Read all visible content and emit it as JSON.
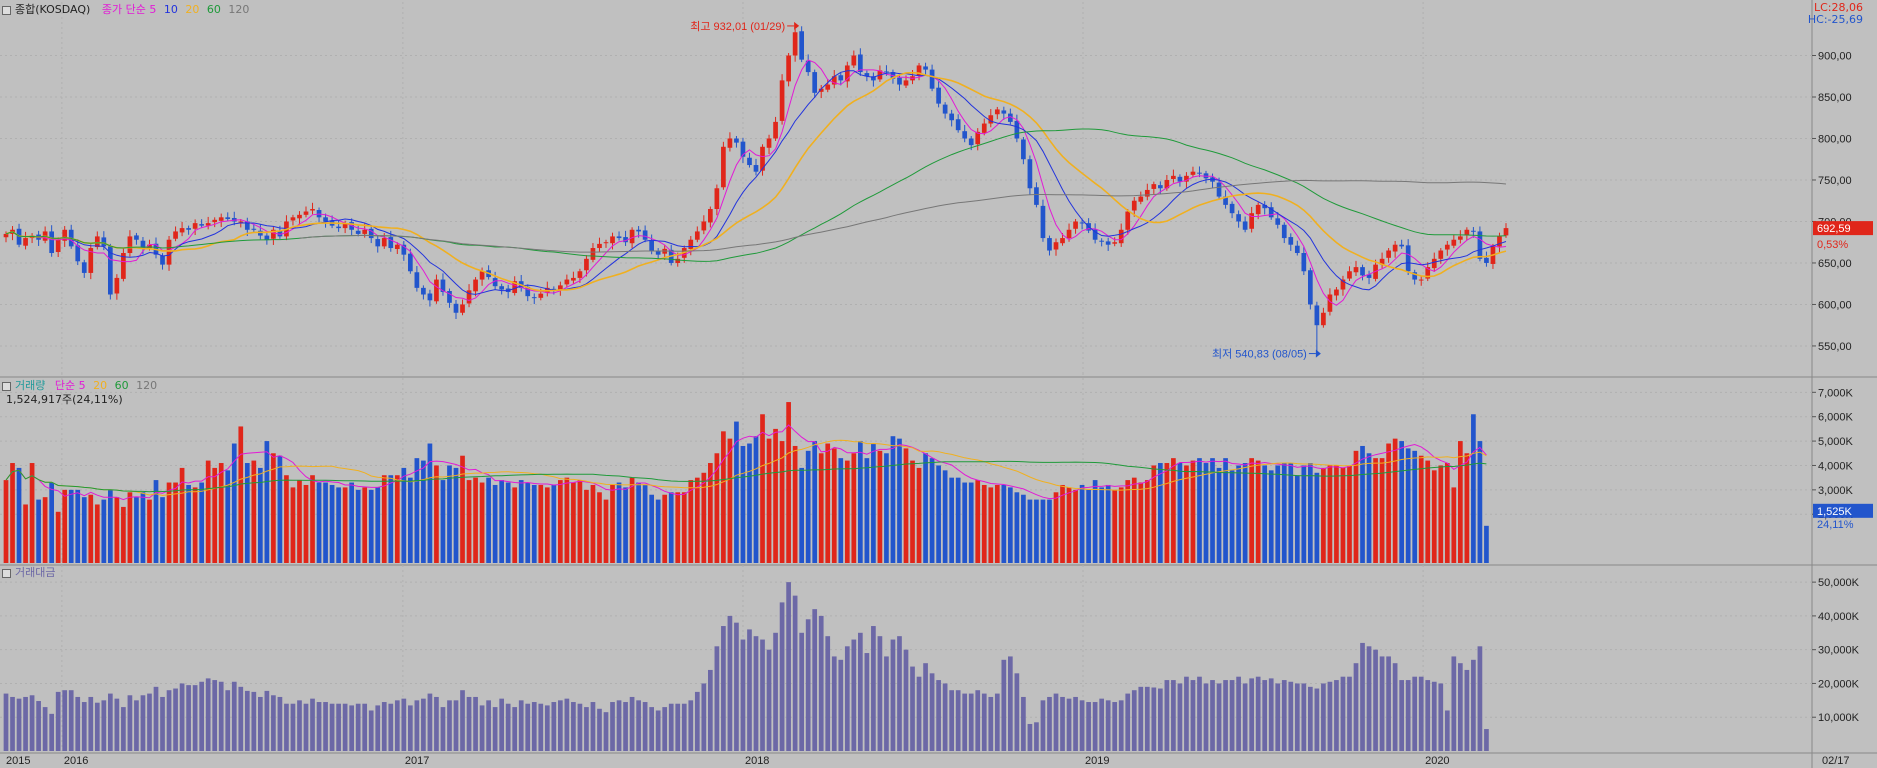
{
  "colors": {
    "bg": "#c0c0c0",
    "grid": "#b0b0b0",
    "up": "#e0261a",
    "down": "#2255cc",
    "ma5": "#e21ad6",
    "ma10": "#2233dd",
    "ma20": "#f0b020",
    "ma60": "#1f9a3a",
    "ma120": "#777777",
    "amount_bar": "#6c68a6"
  },
  "price_panel": {
    "title": "종합(KOSDAQ)",
    "legend_label": "종가 단순",
    "ma_periods": [
      "5",
      "10",
      "20",
      "60",
      "120"
    ],
    "lc": "LC:28,06",
    "hc": "HC:-25,69",
    "y_ticks": [
      "900,00",
      "850,00",
      "800,00",
      "750,00",
      "700,00",
      "650,00",
      "600,00",
      "550,00"
    ],
    "current_price": "692,59",
    "change_pct": "0,53%",
    "high_annotation": "최고 932,01 (01/29)",
    "low_annotation": "최저 540,83 (08/05)"
  },
  "volume_panel": {
    "title": "거래량",
    "legend_label": "단순",
    "ma_periods": [
      "5",
      "20",
      "60",
      "120"
    ],
    "current": "1,524,917주(24,11%)",
    "y_ticks": [
      "7,000K",
      "6,000K",
      "5,000K",
      "4,000K",
      "3,000K",
      "2,000K"
    ],
    "last_value": "1,525K",
    "last_pct": "24,11%"
  },
  "amount_panel": {
    "title": "거래대금",
    "y_ticks": [
      "50,000K",
      "40,000K",
      "30,000K",
      "20,000K",
      "10,000K"
    ]
  },
  "x_axis": {
    "labels": [
      "2015",
      "2016",
      "2017",
      "2018",
      "2019",
      "2020"
    ],
    "end_label": "02/17"
  },
  "chart_data": [
    {
      "type": "candlestick",
      "title": "종합(KOSDAQ)",
      "period": "weekly",
      "ylim": [
        515,
        950
      ],
      "start_week": "2015-11-02",
      "series_close": [
        685,
        690,
        672,
        680,
        683,
        678,
        688,
        662,
        678,
        690,
        670,
        652,
        638,
        668,
        682,
        670,
        612,
        632,
        662,
        682,
        678,
        668,
        672,
        660,
        648,
        678,
        688,
        692,
        690,
        698,
        695,
        698,
        702,
        705,
        703,
        700,
        700,
        690,
        690,
        683,
        678,
        690,
        682,
        700,
        705,
        708,
        712,
        715,
        705,
        700,
        695,
        692,
        698,
        690,
        685,
        690,
        680,
        670,
        680,
        668,
        672,
        660,
        640,
        620,
        612,
        605,
        630,
        615,
        602,
        590,
        600,
        617,
        630,
        640,
        633,
        622,
        618,
        615,
        628,
        620,
        610,
        608,
        613,
        620,
        618,
        623,
        630,
        632,
        640,
        655,
        668,
        673,
        675,
        682,
        680,
        675,
        690,
        688,
        678,
        665,
        660,
        667,
        650,
        655,
        668,
        678,
        688,
        700,
        715,
        740,
        790,
        800,
        795,
        778,
        768,
        760,
        790,
        800,
        820,
        870,
        900,
        928,
        895,
        880,
        855,
        860,
        865,
        875,
        870,
        888,
        900,
        880,
        875,
        870,
        882,
        880,
        872,
        865,
        870,
        875,
        888,
        883,
        860,
        842,
        830,
        822,
        810,
        800,
        792,
        808,
        818,
        828,
        835,
        830,
        820,
        800,
        775,
        740,
        720,
        680,
        665,
        675,
        680,
        690,
        700,
        698,
        689,
        678,
        676,
        672,
        675,
        690,
        712,
        725,
        730,
        738,
        745,
        740,
        750,
        755,
        748,
        755,
        760,
        758,
        752,
        748,
        730,
        720,
        710,
        700,
        690,
        710,
        720,
        716,
        705,
        696,
        680,
        672,
        662,
        640,
        600,
        575,
        590,
        612,
        618,
        630,
        640,
        645,
        635,
        632,
        648,
        655,
        665,
        672,
        670,
        640,
        630,
        630,
        645,
        655,
        665,
        672,
        678,
        682,
        690,
        688,
        655,
        650,
        670,
        682,
        692
      ],
      "highlights": [
        {
          "label": "최고",
          "value": 932.01,
          "date": "01/29"
        },
        {
          "label": "최저",
          "value": 540.83,
          "date": "08/05"
        }
      ],
      "moving_averages": [
        "5",
        "10",
        "20",
        "60",
        "120"
      ]
    },
    {
      "type": "bar",
      "title": "거래량",
      "unit": "K",
      "ylim": [
        0,
        7300
      ],
      "values": [
        3400,
        4100,
        3900,
        2400,
        4100,
        2600,
        2700,
        3300,
        2100,
        3000,
        3000,
        3000,
        2700,
        2800,
        2400,
        2600,
        3000,
        2700,
        2300,
        2900,
        2700,
        2900,
        2600,
        3400,
        2700,
        3300,
        3300,
        3900,
        3200,
        3100,
        3300,
        4200,
        3900,
        4100,
        3800,
        4900,
        5600,
        4100,
        4200,
        3900,
        5000,
        4500,
        4400,
        3600,
        3100,
        3400,
        3200,
        3600,
        3300,
        3300,
        3200,
        3100,
        3100,
        3300,
        3000,
        3100,
        3000,
        3100,
        3600,
        3600,
        3600,
        3900,
        3500,
        4300,
        4200,
        4900,
        4000,
        3400,
        4000,
        3900,
        4400,
        3400,
        3500,
        3300,
        3500,
        3200,
        3400,
        3300,
        3100,
        3400,
        3300,
        3200,
        3200,
        3100,
        3200,
        3400,
        3500,
        3300,
        3400,
        3000,
        3200,
        2900,
        2600,
        3200,
        3300,
        3100,
        3500,
        3300,
        3200,
        2800,
        2600,
        2800,
        2900,
        2900,
        2900,
        3400,
        3500,
        3700,
        4100,
        4500,
        5400,
        5100,
        5800,
        4800,
        4900,
        5200,
        6100,
        5100,
        5500,
        5000,
        6600,
        4800,
        3900,
        4600,
        5000,
        4500,
        4900,
        4700,
        4300,
        4200,
        4500,
        5000,
        4300,
        4900,
        4600,
        4500,
        5200,
        5100,
        4700,
        4200,
        3900,
        4500,
        4300,
        4000,
        3800,
        3500,
        3500,
        3300,
        3300,
        3400,
        3200,
        3100,
        3200,
        3200,
        3100,
        2900,
        2800,
        2600,
        2600,
        2600,
        2600,
        2900,
        3200,
        3100,
        3000,
        3200,
        3000,
        3400,
        3100,
        3200,
        3000,
        3100,
        3400,
        3500,
        3300,
        3400,
        4000,
        4100,
        4100,
        4300,
        4100,
        4000,
        4200,
        4300,
        4100,
        4300,
        3900,
        4300,
        3800,
        4000,
        4100,
        4300,
        4200,
        4000,
        3800,
        4000,
        4100,
        4100,
        3600,
        4000,
        4100,
        3700,
        3900,
        4000,
        4000,
        3900,
        4000,
        4600,
        4800,
        4500,
        4300,
        4300,
        4900,
        5100,
        5000,
        4700,
        4600,
        4400,
        4200,
        3800,
        4000,
        4100,
        3100,
        5000,
        4500,
        6100,
        5000,
        1525
      ],
      "moving_averages": [
        "5",
        "20",
        "60",
        "120"
      ]
    },
    {
      "type": "bar",
      "title": "거래대금",
      "unit": "K",
      "ylim": [
        0,
        53000
      ],
      "values": [
        17000,
        16000,
        15500,
        16000,
        16500,
        14800,
        13000,
        11000,
        17500,
        18000,
        18000,
        16000,
        14500,
        16000,
        14300,
        15000,
        17000,
        15500,
        13000,
        16500,
        15000,
        16500,
        17000,
        19000,
        16000,
        18000,
        18500,
        20000,
        19500,
        19500,
        20500,
        21500,
        21000,
        20500,
        18000,
        20500,
        19000,
        17800,
        17500,
        16000,
        17800,
        16500,
        16000,
        14000,
        14000,
        15000,
        14000,
        15500,
        14500,
        14500,
        14000,
        14000,
        14000,
        13500,
        14000,
        14000,
        12000,
        13500,
        14500,
        14000,
        15000,
        15500,
        13500,
        15000,
        15500,
        17000,
        16000,
        13000,
        15000,
        15000,
        18000,
        16000,
        16000,
        13500,
        15000,
        13000,
        15500,
        14000,
        13000,
        15000,
        14000,
        14500,
        14000,
        13500,
        14500,
        15000,
        15500,
        14500,
        14000,
        13000,
        14500,
        12500,
        11500,
        14500,
        15000,
        14500,
        16000,
        15000,
        14500,
        13000,
        12000,
        13000,
        14000,
        14000,
        14000,
        15000,
        17500,
        20000,
        24000,
        31000,
        37000,
        40000,
        38000,
        33000,
        36000,
        34000,
        33000,
        30000,
        35000,
        44000,
        50000,
        46000,
        35000,
        39000,
        42000,
        40000,
        34000,
        28000,
        27000,
        31000,
        33000,
        35000,
        29000,
        37000,
        34000,
        28000,
        33000,
        34000,
        30000,
        25000,
        22000,
        26000,
        23000,
        21000,
        20000,
        18000,
        18000,
        17000,
        17000,
        18000,
        17000,
        16000,
        17000,
        27000,
        28000,
        23000,
        16000,
        8000,
        8500,
        15000,
        16000,
        17000,
        16000,
        15500,
        16000,
        15000,
        14500,
        14500,
        15500,
        15000,
        14500,
        15000,
        17000,
        18000,
        19000,
        19000,
        18800,
        18500,
        21000,
        21000,
        20000,
        22000,
        21000,
        22000,
        20000,
        21000,
        20000,
        21000,
        21000,
        22000,
        20000,
        21500,
        22000,
        21000,
        21500,
        20000,
        21000,
        20500,
        20000,
        20000,
        19000,
        18500,
        20000,
        20500,
        21000,
        22000,
        22000,
        26000,
        32000,
        31000,
        30000,
        28000,
        28000,
        26000,
        21000,
        21000,
        22000,
        22000,
        21000,
        20500,
        20000,
        12000,
        28000,
        26000,
        24000,
        27000,
        31000,
        6500
      ]
    }
  ]
}
